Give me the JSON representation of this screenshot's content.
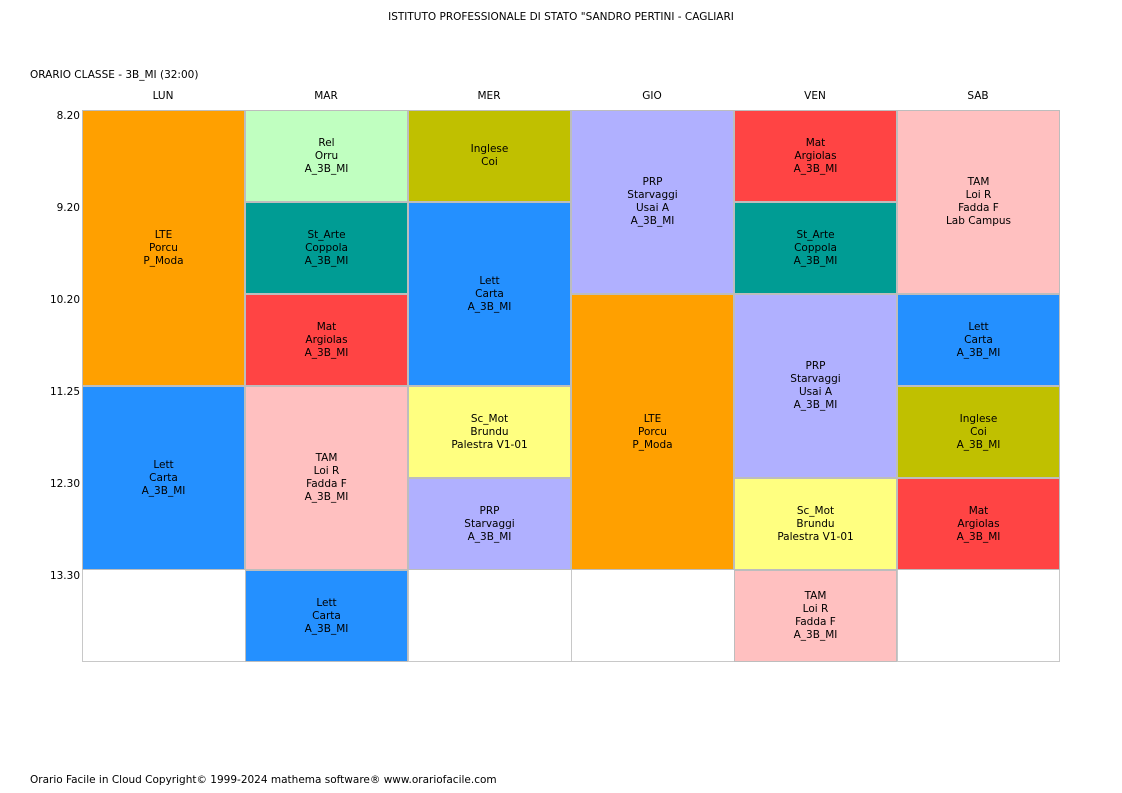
{
  "header": {
    "title": "ISTITUTO PROFESSIONALE DI STATO \"SANDRO PERTINI - CAGLIARI",
    "subtitle": "ORARIO CLASSE   -   3B_MI  (32:00)"
  },
  "days": [
    "LUN",
    "MAR",
    "MER",
    "GIO",
    "VEN",
    "SAB"
  ],
  "times": [
    "8.20",
    "9.20",
    "10.20",
    "11.25",
    "12.30",
    "13.30"
  ],
  "colors": {
    "orange": "#ffa000",
    "blue": "#2490ff",
    "light_green": "#c0ffc0",
    "teal": "#009c94",
    "red": "#ff4444",
    "pink": "#ffc0c0",
    "olive": "#c0c000",
    "yellow": "#ffff80",
    "lavender": "#b0b0ff"
  },
  "lessons": [
    {
      "day": 0,
      "start": 0,
      "span": 3,
      "color": "orange",
      "lines": [
        "LTE",
        "Porcu",
        "P_Moda"
      ]
    },
    {
      "day": 0,
      "start": 3,
      "span": 2,
      "color": "blue",
      "lines": [
        "Lett",
        "Carta",
        "A_3B_MI"
      ]
    },
    {
      "day": 1,
      "start": 0,
      "span": 1,
      "color": "light_green",
      "lines": [
        "Rel",
        "Orru",
        "A_3B_MI"
      ]
    },
    {
      "day": 1,
      "start": 1,
      "span": 1,
      "color": "teal",
      "lines": [
        "St_Arte",
        "Coppola",
        "A_3B_MI"
      ]
    },
    {
      "day": 1,
      "start": 2,
      "span": 1,
      "color": "red",
      "lines": [
        "Mat",
        "Argiolas",
        "A_3B_MI"
      ]
    },
    {
      "day": 1,
      "start": 3,
      "span": 2,
      "color": "pink",
      "lines": [
        "TAM",
        "Loi R",
        "Fadda F",
        "A_3B_MI"
      ]
    },
    {
      "day": 1,
      "start": 5,
      "span": 1,
      "color": "blue",
      "lines": [
        "Lett",
        "Carta",
        "A_3B_MI"
      ]
    },
    {
      "day": 2,
      "start": 0,
      "span": 1,
      "color": "olive",
      "lines": [
        "Inglese",
        "Coi"
      ]
    },
    {
      "day": 2,
      "start": 1,
      "span": 2,
      "color": "blue",
      "lines": [
        "Lett",
        "Carta",
        "A_3B_MI"
      ]
    },
    {
      "day": 2,
      "start": 3,
      "span": 1,
      "color": "yellow",
      "lines": [
        "Sc_Mot",
        "Brundu",
        "Palestra V1-01"
      ]
    },
    {
      "day": 2,
      "start": 4,
      "span": 1,
      "color": "lavender",
      "lines": [
        "PRP",
        "Starvaggi",
        "A_3B_MI"
      ]
    },
    {
      "day": 3,
      "start": 0,
      "span": 2,
      "color": "lavender",
      "lines": [
        "PRP",
        "Starvaggi",
        "Usai A",
        "A_3B_MI"
      ]
    },
    {
      "day": 3,
      "start": 2,
      "span": 3,
      "color": "orange",
      "lines": [
        "LTE",
        "Porcu",
        "P_Moda"
      ]
    },
    {
      "day": 4,
      "start": 0,
      "span": 1,
      "color": "red",
      "lines": [
        "Mat",
        "Argiolas",
        "A_3B_MI"
      ]
    },
    {
      "day": 4,
      "start": 1,
      "span": 1,
      "color": "teal",
      "lines": [
        "St_Arte",
        "Coppola",
        "A_3B_MI"
      ]
    },
    {
      "day": 4,
      "start": 2,
      "span": 2,
      "color": "lavender",
      "lines": [
        "PRP",
        "Starvaggi",
        "Usai A",
        "A_3B_MI"
      ]
    },
    {
      "day": 4,
      "start": 4,
      "span": 1,
      "color": "yellow",
      "lines": [
        "Sc_Mot",
        "Brundu",
        "Palestra V1-01"
      ]
    },
    {
      "day": 4,
      "start": 5,
      "span": 1,
      "color": "pink",
      "lines": [
        "TAM",
        "Loi R",
        "Fadda F",
        "A_3B_MI"
      ]
    },
    {
      "day": 5,
      "start": 0,
      "span": 2,
      "color": "pink",
      "lines": [
        "TAM",
        "Loi R",
        "Fadda F",
        "Lab Campus"
      ]
    },
    {
      "day": 5,
      "start": 2,
      "span": 1,
      "color": "blue",
      "lines": [
        "Lett",
        "Carta",
        "A_3B_MI"
      ]
    },
    {
      "day": 5,
      "start": 3,
      "span": 1,
      "color": "olive",
      "lines": [
        "Inglese",
        "Coi",
        "A_3B_MI"
      ]
    },
    {
      "day": 5,
      "start": 4,
      "span": 1,
      "color": "red",
      "lines": [
        "Mat",
        "Argiolas",
        "A_3B_MI"
      ]
    }
  ],
  "footer": "Orario Facile in Cloud  Copyright© 1999-2024 mathema software®     www.orariofacile.com"
}
